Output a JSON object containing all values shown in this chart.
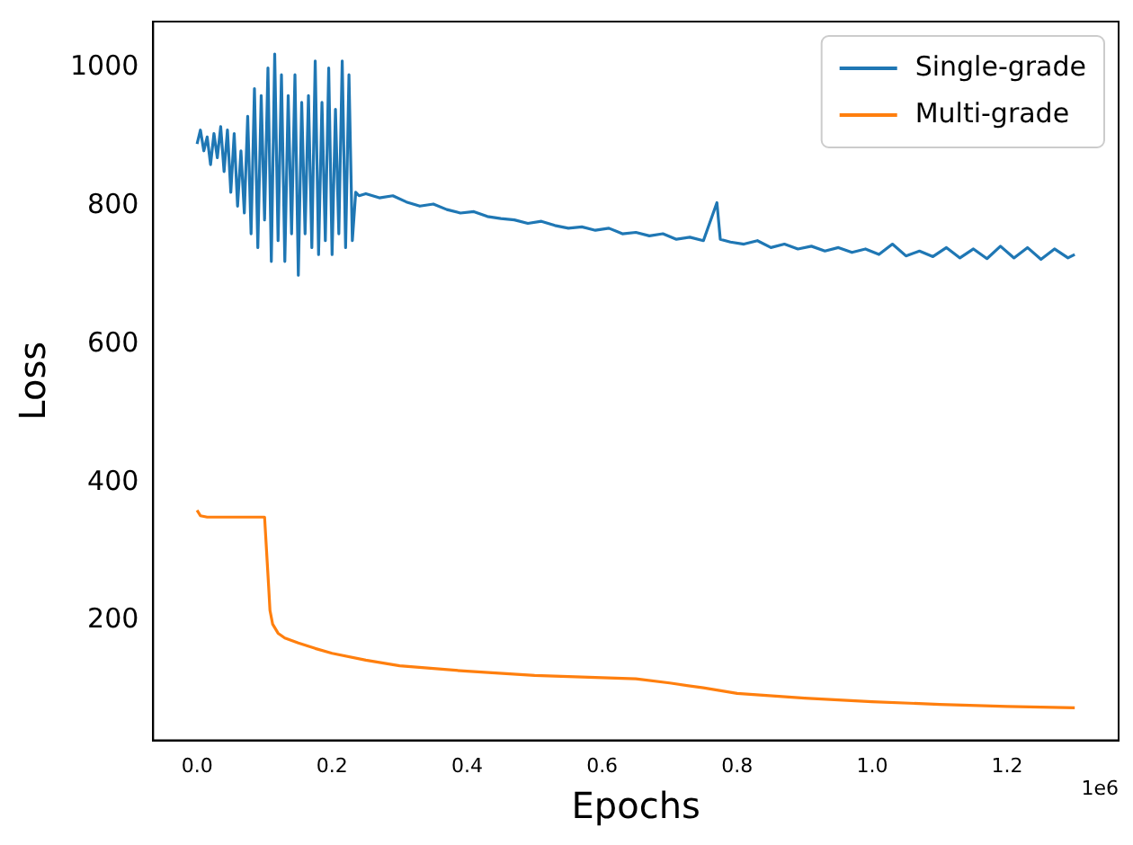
{
  "chart_data": {
    "type": "line",
    "xlabel": "Epochs",
    "ylabel": "Loss",
    "annotations": [
      "1e6"
    ],
    "xlim": [
      -0.065,
      1.365
    ],
    "xticks": [
      {
        "value": 0,
        "label": "0.0"
      },
      0.2,
      0.4,
      0.6,
      0.8,
      {
        "value": 1,
        "label": "1.0"
      },
      1.2
    ],
    "ylim": [
      27,
      1067
    ],
    "yticks": [
      200,
      400,
      600,
      800,
      1000
    ],
    "grid": false,
    "legend": "top right",
    "marker": "none",
    "line_style": "solid",
    "series": [
      {
        "name": "Single-grade",
        "color": "#1f77b4",
        "x": [
          0,
          0.005,
          0.01,
          0.015,
          0.02,
          0.025,
          0.03,
          0.035,
          0.04,
          0.045,
          0.05,
          0.055,
          0.06,
          0.065,
          0.07,
          0.075,
          0.08,
          0.085,
          0.09,
          0.095,
          0.1,
          0.105,
          0.11,
          0.115,
          0.12,
          0.125,
          0.13,
          0.135,
          0.14,
          0.145,
          0.15,
          0.155,
          0.16,
          0.165,
          0.17,
          0.175,
          0.18,
          0.185,
          0.19,
          0.195,
          0.2,
          0.205,
          0.21,
          0.215,
          0.22,
          0.225,
          0.23,
          0.235,
          0.24,
          0.25,
          0.27,
          0.29,
          0.31,
          0.33,
          0.35,
          0.37,
          0.39,
          0.41,
          0.43,
          0.45,
          0.47,
          0.49,
          0.51,
          0.53,
          0.55,
          0.57,
          0.59,
          0.61,
          0.63,
          0.65,
          0.67,
          0.69,
          0.71,
          0.73,
          0.75,
          0.77,
          0.775,
          0.79,
          0.81,
          0.83,
          0.85,
          0.87,
          0.89,
          0.91,
          0.93,
          0.95,
          0.97,
          0.99,
          1.01,
          1.03,
          1.05,
          1.07,
          1.09,
          1.11,
          1.13,
          1.15,
          1.17,
          1.19,
          1.21,
          1.23,
          1.25,
          1.27,
          1.29,
          1.3
        ],
        "values": [
          890,
          910,
          880,
          900,
          860,
          905,
          870,
          915,
          850,
          910,
          820,
          905,
          800,
          880,
          790,
          930,
          760,
          970,
          740,
          960,
          780,
          1000,
          720,
          1020,
          750,
          990,
          720,
          960,
          760,
          990,
          700,
          950,
          760,
          960,
          740,
          1010,
          730,
          950,
          750,
          1000,
          730,
          940,
          760,
          1010,
          740,
          990,
          750,
          820,
          815,
          818,
          812,
          815,
          806,
          800,
          803,
          795,
          790,
          792,
          785,
          782,
          780,
          775,
          778,
          772,
          768,
          770,
          765,
          768,
          760,
          762,
          757,
          760,
          752,
          755,
          750,
          805,
          752,
          748,
          745,
          750,
          740,
          745,
          738,
          742,
          735,
          740,
          733,
          738,
          730,
          745,
          728,
          735,
          727,
          740,
          725,
          738,
          724,
          742,
          725,
          740,
          723,
          738,
          725,
          730
        ]
      },
      {
        "name": "Multi-grade",
        "color": "#ff7f0e",
        "x": [
          0,
          0.005,
          0.015,
          0.05,
          0.1,
          0.103,
          0.106,
          0.108,
          0.112,
          0.12,
          0.13,
          0.15,
          0.175,
          0.2,
          0.25,
          0.3,
          0.4,
          0.5,
          0.65,
          0.7,
          0.75,
          0.8,
          0.9,
          1,
          1.1,
          1.2,
          1.3
        ],
        "values": [
          360,
          352,
          350,
          350,
          350,
          300,
          250,
          215,
          195,
          182,
          175,
          168,
          160,
          153,
          143,
          135,
          127,
          121,
          116,
          110,
          103,
          95,
          88,
          83,
          79,
          76,
          74
        ]
      }
    ]
  }
}
